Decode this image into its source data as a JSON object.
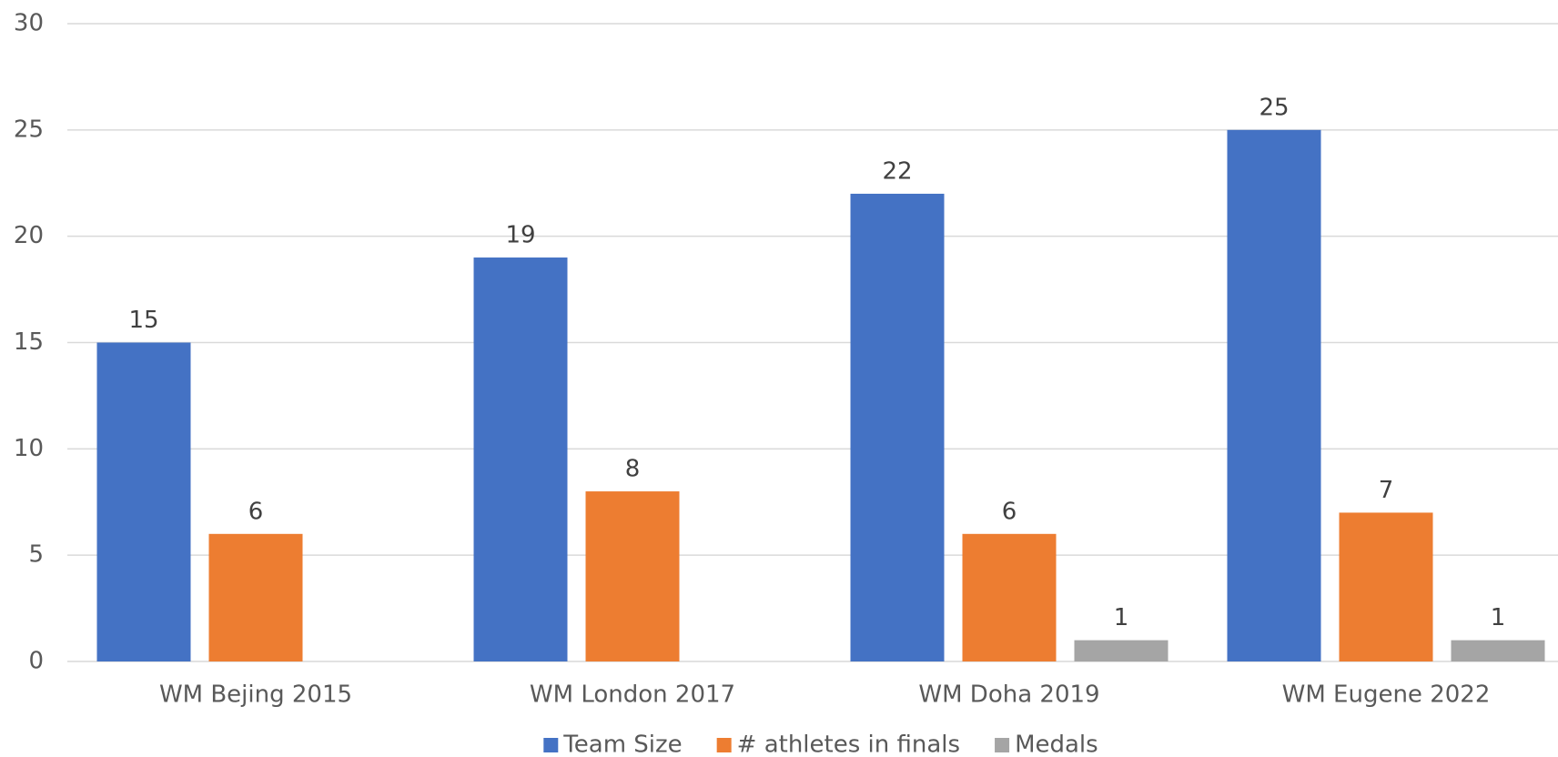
{
  "chart_data": {
    "type": "bar",
    "categories": [
      "WM Bejing 2015",
      "WM London 2017",
      "WM Doha 2019",
      "WM Eugene 2022"
    ],
    "series": [
      {
        "name": "Team Size",
        "color": "#4472c4",
        "values": [
          15,
          19,
          22,
          25
        ]
      },
      {
        "name": "# athletes in finals",
        "color": "#ed7d31",
        "values": [
          6,
          8,
          6,
          7
        ]
      },
      {
        "name": "Medals",
        "color": "#a5a5a5",
        "values": [
          null,
          null,
          1,
          1
        ]
      }
    ],
    "ylim": [
      0,
      30
    ],
    "yticks": [
      0,
      5,
      10,
      15,
      20,
      25,
      30
    ],
    "grid": true,
    "legend": "bottom"
  }
}
